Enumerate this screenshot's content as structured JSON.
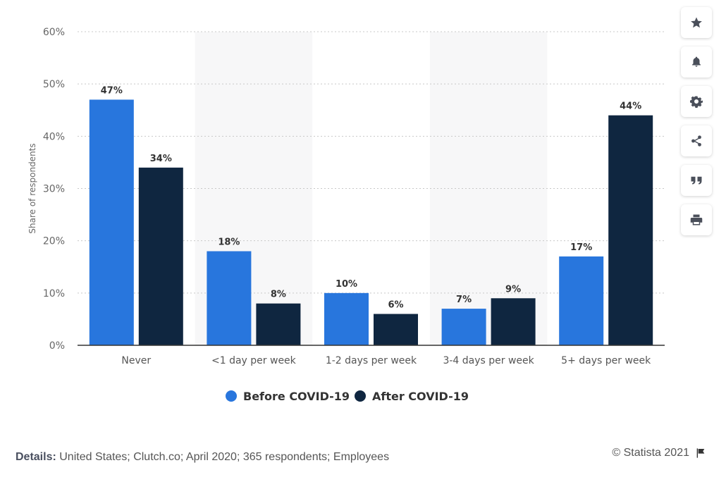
{
  "chart_data": {
    "type": "bar",
    "categories": [
      "Never",
      "<1 day per week",
      "1-2 days per week",
      "3-4 days per week",
      "5+ days per week"
    ],
    "series": [
      {
        "name": "Before COVID-19",
        "values": [
          47,
          18,
          10,
          7,
          17
        ],
        "color": "#2876dd"
      },
      {
        "name": "After COVID-19",
        "values": [
          34,
          8,
          6,
          9,
          44
        ],
        "color": "#0f2640"
      }
    ],
    "ylabel": "Share of respondents",
    "ylim": [
      0,
      60
    ],
    "yticks": [
      "0%",
      "10%",
      "20%",
      "30%",
      "40%",
      "50%",
      "60%"
    ],
    "value_suffix": "%",
    "grid": true,
    "legend_position": "bottom-center"
  },
  "footer": {
    "details_label": "Details:",
    "details_text": "United States; Clutch.co; April 2020; 365 respondents; Employees",
    "credit": "© Statista 2021"
  },
  "toolbar": [
    {
      "icon": "star-icon"
    },
    {
      "icon": "bell-icon"
    },
    {
      "icon": "gear-icon"
    },
    {
      "icon": "share-icon"
    },
    {
      "icon": "quote-icon"
    },
    {
      "icon": "print-icon"
    }
  ]
}
